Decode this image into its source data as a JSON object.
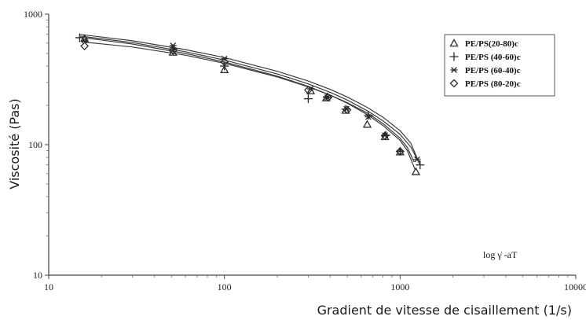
{
  "chart_data": {
    "type": "scatter",
    "title": "",
    "xlabel": "Gradient de vitesse de cisaillement (1/s)",
    "ylabel": "Viscosité (Pas)",
    "xscale": "log",
    "yscale": "log",
    "xlim": [
      10,
      10000
    ],
    "ylim": [
      10,
      1000
    ],
    "grid": false,
    "legend_position": "top-right",
    "x_ticks": [
      {
        "value": 10,
        "label": "10"
      },
      {
        "value": 100,
        "label": "100"
      },
      {
        "value": 1000,
        "label": "1000"
      },
      {
        "value": 10000,
        "label": "10000"
      }
    ],
    "y_ticks": [
      {
        "value": 10,
        "label": "10"
      },
      {
        "value": 100,
        "label": "100"
      },
      {
        "value": 1000,
        "label": "1000"
      }
    ],
    "annotation": "log γ̇ -aT",
    "series": [
      {
        "name": "PE/PS(20-80)c",
        "marker": "triangle",
        "color": "#333333",
        "points": [
          [
            16,
            650
          ],
          [
            51,
            510
          ],
          [
            100,
            375
          ],
          [
            310,
            258
          ],
          [
            380,
            228
          ],
          [
            490,
            183
          ],
          [
            650,
            143
          ],
          [
            820,
            115
          ],
          [
            1000,
            88
          ],
          [
            1230,
            62
          ]
        ],
        "fit": [
          [
            15,
            665
          ],
          [
            30,
            590
          ],
          [
            60,
            500
          ],
          [
            100,
            430
          ],
          [
            200,
            335
          ],
          [
            300,
            280
          ],
          [
            400,
            240
          ],
          [
            500,
            208
          ],
          [
            650,
            170
          ],
          [
            800,
            140
          ],
          [
            1000,
            108
          ],
          [
            1100,
            90
          ],
          [
            1220,
            64
          ]
        ]
      },
      {
        "name": "PE/PS (40-60)c",
        "marker": "plus",
        "color": "#333333",
        "points": [
          [
            15,
            660
          ],
          [
            51,
            540
          ],
          [
            100,
            400
          ],
          [
            300,
            225
          ],
          [
            385,
            232
          ],
          [
            490,
            187
          ],
          [
            660,
            168
          ],
          [
            830,
            118
          ],
          [
            1000,
            89
          ],
          [
            1300,
            70
          ]
        ],
        "fit": [
          [
            15,
            680
          ],
          [
            30,
            605
          ],
          [
            60,
            515
          ],
          [
            100,
            445
          ],
          [
            200,
            348
          ],
          [
            300,
            292
          ],
          [
            400,
            252
          ],
          [
            500,
            220
          ],
          [
            650,
            182
          ],
          [
            800,
            152
          ],
          [
            1000,
            120
          ],
          [
            1150,
            96
          ],
          [
            1300,
            70
          ]
        ]
      },
      {
        "name": "PE/PS (60-40)c",
        "marker": "asterisk",
        "color": "#333333",
        "points": [
          [
            16,
            630
          ],
          [
            51,
            575
          ],
          [
            100,
            455
          ],
          [
            310,
            268
          ],
          [
            385,
            230
          ],
          [
            495,
            188
          ],
          [
            660,
            163
          ],
          [
            820,
            118
          ],
          [
            1250,
            77
          ]
        ],
        "fit": [
          [
            15,
            700
          ],
          [
            30,
            625
          ],
          [
            60,
            535
          ],
          [
            100,
            465
          ],
          [
            200,
            365
          ],
          [
            300,
            307
          ],
          [
            400,
            265
          ],
          [
            500,
            232
          ],
          [
            650,
            193
          ],
          [
            800,
            162
          ],
          [
            1000,
            128
          ],
          [
            1150,
            103
          ],
          [
            1260,
            77
          ]
        ]
      },
      {
        "name": "PE/PS (80-20)c",
        "marker": "diamond",
        "color": "#333333",
        "points": [
          [
            16,
            570
          ],
          [
            51,
            525
          ],
          [
            100,
            430
          ],
          [
            300,
            262
          ],
          [
            390,
            230
          ],
          [
            500,
            185
          ],
          [
            820,
            117
          ],
          [
            1000,
            89
          ]
        ],
        "fit": [
          [
            16,
            610
          ],
          [
            30,
            560
          ],
          [
            60,
            485
          ],
          [
            100,
            420
          ],
          [
            200,
            330
          ],
          [
            300,
            277
          ],
          [
            400,
            240
          ],
          [
            500,
            210
          ],
          [
            650,
            175
          ],
          [
            800,
            145
          ],
          [
            1000,
            112
          ],
          [
            1100,
            95
          ],
          [
            1200,
            74
          ]
        ]
      }
    ]
  }
}
